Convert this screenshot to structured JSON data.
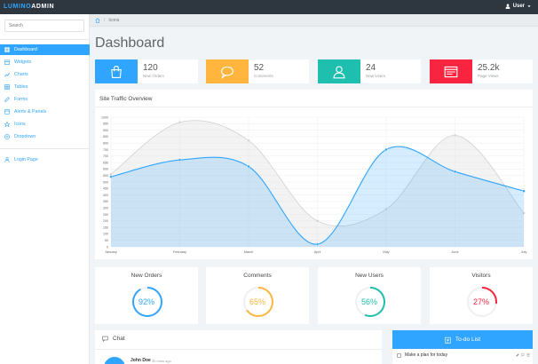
{
  "app": {
    "brand_part1": "LUMINO",
    "brand_part2": "ADMIN",
    "user_label": "User"
  },
  "sidebar": {
    "search_placeholder": "Search",
    "items": [
      {
        "label": "Dashboard",
        "icon": "dashboard-icon",
        "active": true
      },
      {
        "label": "Widgets",
        "icon": "calendar-icon"
      },
      {
        "label": "Charts",
        "icon": "line-chart-icon"
      },
      {
        "label": "Tables",
        "icon": "table-icon"
      },
      {
        "label": "Forms",
        "icon": "pencil-icon"
      },
      {
        "label": "Alerts & Panels",
        "icon": "window-icon"
      },
      {
        "label": "Icons",
        "icon": "star-icon"
      },
      {
        "label": "Dropdown",
        "icon": "circle-plus-icon"
      }
    ],
    "login_label": "Login Page"
  },
  "breadcrumb": {
    "current": "Icons"
  },
  "page": {
    "title": "Dashboard"
  },
  "stats": [
    {
      "value": "120",
      "label": "New Orders",
      "color": "#30a5ff",
      "icon": "shopping-bag-icon"
    },
    {
      "value": "52",
      "label": "Comments",
      "color": "#ffb53e",
      "icon": "speech-bubble-icon"
    },
    {
      "value": "24",
      "label": "New Users",
      "color": "#1ebfae",
      "icon": "user-icon"
    },
    {
      "value": "25.2k",
      "label": "Page Views",
      "color": "#f9243f",
      "icon": "browser-window-icon"
    }
  ],
  "traffic": {
    "title": "Site Traffic Overview",
    "chart_data": {
      "type": "line",
      "categories": [
        "January",
        "February",
        "March",
        "April",
        "May",
        "June",
        "July"
      ],
      "ylim": [
        0,
        1000
      ],
      "yticks": [
        0,
        50,
        100,
        150,
        200,
        250,
        300,
        350,
        400,
        450,
        500,
        550,
        600,
        650,
        700,
        750,
        800,
        850,
        900,
        950,
        1000
      ],
      "series": [
        {
          "values": [
            560,
            960,
            820,
            200,
            290,
            860,
            260
          ],
          "color": "#cfcfcf",
          "fill": "rgba(220,220,220,0.35)"
        },
        {
          "values": [
            540,
            670,
            620,
            20,
            750,
            580,
            430
          ],
          "color": "#30a5ff",
          "fill": "rgba(48,165,255,0.20)"
        }
      ]
    }
  },
  "progress": [
    {
      "title": "New Orders",
      "value": 92,
      "label": "92%",
      "color": "#30a5ff"
    },
    {
      "title": "Comments",
      "value": 65,
      "label": "65%",
      "color": "#ffb53e"
    },
    {
      "title": "New Users",
      "value": 56,
      "label": "56%",
      "color": "#1ebfae"
    },
    {
      "title": "Visitors",
      "value": 27,
      "label": "27%",
      "color": "#f9243f"
    }
  ],
  "chat": {
    "title": "Chat",
    "message_author": "John Doe",
    "message_time": "30 mins ago"
  },
  "todo": {
    "title": "To-do List",
    "items": [
      {
        "text": "Make a plan for today"
      }
    ]
  }
}
